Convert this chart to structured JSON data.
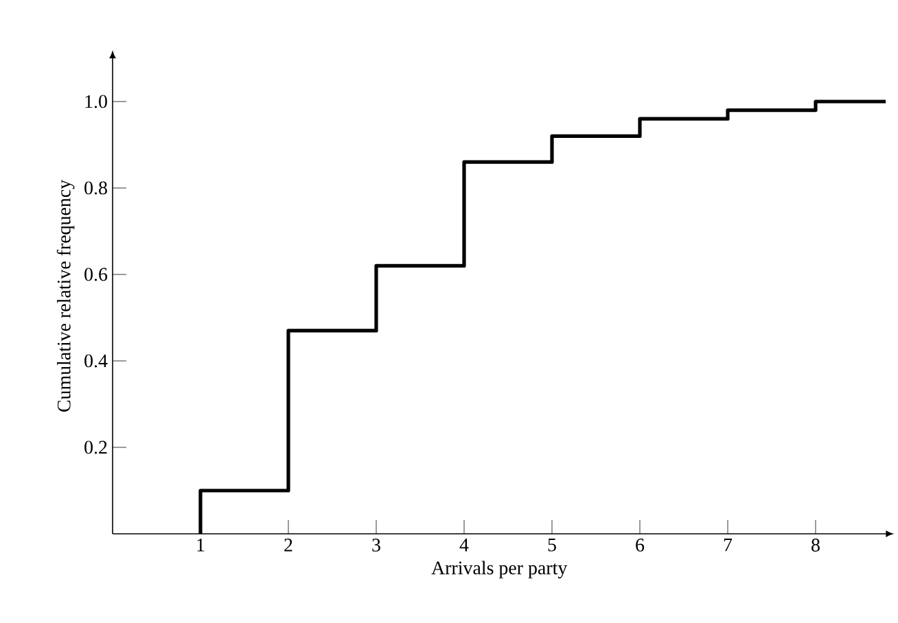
{
  "chart_data": {
    "type": "step",
    "xlabel": "Arrivals per party",
    "ylabel": "Cumulative relative frequency",
    "x": [
      1,
      1,
      2,
      3,
      4,
      5,
      6,
      7,
      8,
      8.8
    ],
    "values": [
      0,
      0.1,
      0.47,
      0.62,
      0.86,
      0.92,
      0.96,
      0.98,
      1.0,
      1.0
    ],
    "color": "#000000",
    "xlim": [
      0,
      8.8
    ],
    "ylim": [
      0,
      1.1
    ],
    "xticks": [
      1,
      2,
      3,
      4,
      5,
      6,
      7,
      8
    ],
    "yticks": [
      0.2,
      0.4,
      0.6,
      0.8,
      {
        "value": 1,
        "label": "1.0"
      }
    ],
    "grid": false
  }
}
